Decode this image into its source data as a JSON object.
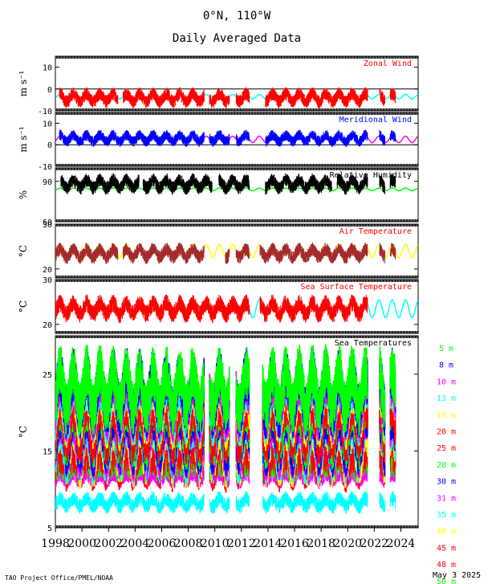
{
  "header": {
    "title": "0°N, 110°W",
    "subtitle": "Daily Averaged Data"
  },
  "footer": {
    "credit": "TAO Project Office/PMEL/NOAA",
    "date": "May  3 2025"
  },
  "x_axis": {
    "tick_labels": [
      "1998",
      "2000",
      "2002",
      "2004",
      "2006",
      "2008",
      "2010",
      "2012",
      "2014",
      "2016",
      "2018",
      "2020",
      "2022",
      "2024"
    ],
    "range": [
      1998,
      2025.3
    ]
  },
  "colors": {
    "zonal": "#ff0000",
    "meridional": "#0000ff",
    "humidity": "#000000",
    "air_temp": "#a52a2a",
    "sst": "#ff0000",
    "climatology_cyan": "#00ffff",
    "climatology_magenta": "#ff00ff",
    "climatology_green": "#00ff00",
    "climatology_yellow": "#ffff00"
  },
  "chart_data": [
    {
      "type": "line",
      "key": "zonal",
      "title": "Zonal Wind",
      "ylabel": "m s⁻¹",
      "ylim": [
        -10,
        15
      ],
      "yticks": [
        "10",
        "0",
        "-10"
      ],
      "series": [
        {
          "role": "observed",
          "color": "#ff0000",
          "typical_value": -4,
          "variability": 3
        },
        {
          "role": "climatology",
          "color": "#00ffff",
          "mean": -3.5,
          "seasonal_amp": 1
        }
      ],
      "gaps": [
        [
          1998.0,
          1998.3
        ],
        [
          2002.7,
          2003.1
        ],
        [
          2009.2,
          2009.6
        ],
        [
          2011.1,
          2011.6
        ],
        [
          2012.6,
          2013.8
        ],
        [
          2021.5,
          2022.4
        ],
        [
          2022.8,
          2023.2
        ],
        [
          2023.6,
          2025.3
        ]
      ]
    },
    {
      "type": "line",
      "key": "meridional",
      "title": "Meridional Wind",
      "ylabel": "m s⁻¹",
      "ylim": [
        -10,
        15
      ],
      "yticks": [
        "10",
        "0",
        "-10"
      ],
      "series": [
        {
          "role": "observed",
          "color": "#0000ff",
          "typical_value": 3,
          "variability": 2.5
        },
        {
          "role": "climatology",
          "color": "#ff00ff",
          "mean": 2.5,
          "seasonal_amp": 1.5
        }
      ],
      "gaps": [
        [
          1998.0,
          1998.3
        ],
        [
          2009.2,
          2009.6
        ],
        [
          2011.1,
          2011.6
        ],
        [
          2012.6,
          2013.8
        ],
        [
          2021.5,
          2022.4
        ],
        [
          2022.8,
          2023.2
        ],
        [
          2023.6,
          2025.3
        ]
      ]
    },
    {
      "type": "line",
      "key": "humidity",
      "title": "Relative Humidity",
      "ylabel": "%",
      "ylim": [
        60,
        100
      ],
      "yticks": [
        "90",
        "60"
      ],
      "series": [
        {
          "role": "observed",
          "color": "#000000",
          "typical_value": 88,
          "variability": 5
        },
        {
          "role": "climatology",
          "color": "#00ff00",
          "mean": 84,
          "seasonal_amp": 1
        }
      ],
      "gaps": [
        [
          1998.0,
          1998.4
        ],
        [
          2004.3,
          2004.6
        ],
        [
          2009.8,
          2010.3
        ],
        [
          2012.6,
          2013.8
        ],
        [
          2018.8,
          2019.2
        ],
        [
          2021.5,
          2022.4
        ],
        [
          2022.8,
          2023.2
        ],
        [
          2023.6,
          2025.3
        ]
      ]
    },
    {
      "type": "line",
      "key": "air_temp",
      "title": "Air Temperature",
      "ylabel": "°C",
      "ylim": [
        18,
        30
      ],
      "yticks": [
        "30",
        "20"
      ],
      "series": [
        {
          "role": "observed",
          "color": "#a52a2a",
          "typical_value": 23.5,
          "variability": 1.5
        },
        {
          "role": "climatology",
          "color": "#ffff00",
          "mean": 24,
          "seasonal_amp": 1.5
        }
      ],
      "gaps": [
        [
          2002.7,
          2003.1
        ],
        [
          2009.2,
          2010.8
        ],
        [
          2011.1,
          2011.6
        ],
        [
          2012.6,
          2013.4
        ],
        [
          2021.5,
          2022.4
        ],
        [
          2022.8,
          2023.2
        ],
        [
          2023.6,
          2025.3
        ]
      ]
    },
    {
      "type": "line",
      "key": "sst",
      "title": "Sea Surface Temperature",
      "ylabel": "°C",
      "ylim": [
        18,
        30
      ],
      "yticks": [
        "30",
        "20"
      ],
      "series": [
        {
          "role": "observed",
          "color": "#ff0000",
          "typical_value": 23.5,
          "variability": 2
        },
        {
          "role": "climatology",
          "color": "#00ffff",
          "mean": 23.5,
          "seasonal_amp": 2
        }
      ],
      "gaps": [
        [
          2012.6,
          2013.4
        ],
        [
          2021.5,
          2025.3
        ]
      ]
    },
    {
      "type": "area",
      "key": "sea_temps",
      "title": "Sea Temperatures",
      "ylabel": "°C",
      "ylim": [
        5,
        30
      ],
      "yticks": [
        "25",
        "15",
        "5"
      ],
      "legend_placement": "right",
      "series": [
        {
          "name": "5 m",
          "color": "#00ff00",
          "mean": 23
        },
        {
          "name": "8 m",
          "color": "#0000ff",
          "mean": 22.5
        },
        {
          "name": "10 m",
          "color": "#ff00ff",
          "mean": 22
        },
        {
          "name": "13 m",
          "color": "#00ffff",
          "mean": 21.5
        },
        {
          "name": "15 m",
          "color": "#ffff00",
          "mean": 21
        },
        {
          "name": "20 m",
          "color": "#ff0000",
          "mean": 20
        },
        {
          "name": "25 m",
          "color": "#ff0000",
          "mean": 19
        },
        {
          "name": "28 m",
          "color": "#00ff00",
          "mean": 18.5
        },
        {
          "name": "30 m",
          "color": "#0000ff",
          "mean": 17.5
        },
        {
          "name": "31 m",
          "color": "#ff00ff",
          "mean": 17
        },
        {
          "name": "35 m",
          "color": "#00ffff",
          "mean": 16.5
        },
        {
          "name": "40 m",
          "color": "#ffff00",
          "mean": 16
        },
        {
          "name": "45 m",
          "color": "#ff0000",
          "mean": 15.5
        },
        {
          "name": "48 m",
          "color": "#ff0000",
          "mean": 15
        },
        {
          "name": "50 m",
          "color": "#00ff00",
          "mean": 14.5
        }
      ],
      "deep_series": [
        {
          "color": "#a52a2a",
          "mean": 20.5
        },
        {
          "color": "#ff0000",
          "mean": 13
        },
        {
          "color": "#ff00ff",
          "mean": 11.5
        },
        {
          "color": "#00ffff",
          "mean": 8.3
        }
      ],
      "gaps": [
        [
          2009.2,
          2009.6
        ],
        [
          2011.1,
          2011.6
        ],
        [
          2012.6,
          2013.6
        ],
        [
          2021.5,
          2022.4
        ],
        [
          2022.8,
          2023.2
        ],
        [
          2023.6,
          2025.3
        ]
      ]
    }
  ]
}
